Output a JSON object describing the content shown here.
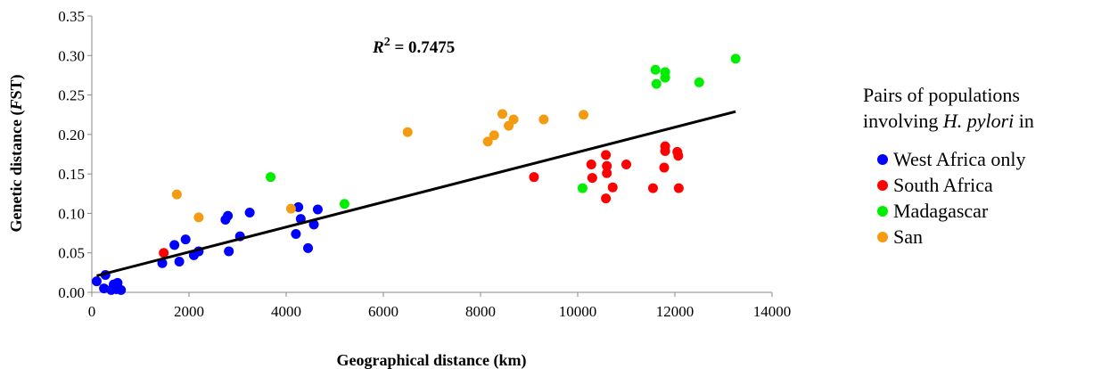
{
  "chart_data": {
    "type": "scatter",
    "annotation": {
      "r_label": "R",
      "r_exp": "2",
      "r_value": " = 0.7475"
    },
    "xlabel": "Geographical distance (km)",
    "ylabel": {
      "prefix": "Genetic distance (",
      "italic": "F",
      "mid": "ST",
      "suffix": ")"
    },
    "xlim": [
      0,
      14000
    ],
    "ylim": [
      0,
      0.35
    ],
    "xticks": [
      "0",
      "2000",
      "4000",
      "6000",
      "8000",
      "10000",
      "12000",
      "14000"
    ],
    "yticks": [
      "0.00",
      "0.05",
      "0.10",
      "0.15",
      "0.20",
      "0.25",
      "0.30",
      "0.35"
    ],
    "grid": false,
    "trendline": {
      "x": [
        100,
        13250
      ],
      "y": [
        0.021,
        0.229
      ]
    },
    "legend": {
      "title_line1": "Pairs of populations",
      "title_line2_prefix": "involving ",
      "title_line2_italic": "H. pylori",
      "title_line2_suffix": " in",
      "position": "right"
    },
    "series": [
      {
        "name": "West Africa only",
        "color": "#0000ff",
        "points": [
          [
            100,
            0.014
          ],
          [
            280,
            0.022
          ],
          [
            250,
            0.005
          ],
          [
            400,
            0.003
          ],
          [
            450,
            0.01
          ],
          [
            500,
            0.004
          ],
          [
            530,
            0.012
          ],
          [
            600,
            0.003
          ],
          [
            1450,
            0.037
          ],
          [
            1700,
            0.06
          ],
          [
            1800,
            0.039
          ],
          [
            1930,
            0.067
          ],
          [
            2100,
            0.047
          ],
          [
            2200,
            0.052
          ],
          [
            2750,
            0.092
          ],
          [
            2800,
            0.097
          ],
          [
            2820,
            0.052
          ],
          [
            3050,
            0.071
          ],
          [
            3250,
            0.101
          ],
          [
            4200,
            0.074
          ],
          [
            4250,
            0.108
          ],
          [
            4300,
            0.093
          ],
          [
            4450,
            0.056
          ],
          [
            4570,
            0.086
          ],
          [
            4650,
            0.105
          ]
        ]
      },
      {
        "name": "South Africa",
        "color": "#ff0000",
        "points": [
          [
            1480,
            0.05
          ],
          [
            9100,
            0.146
          ],
          [
            10280,
            0.162
          ],
          [
            10300,
            0.145
          ],
          [
            10580,
            0.174
          ],
          [
            10600,
            0.16
          ],
          [
            10600,
            0.151
          ],
          [
            10580,
            0.119
          ],
          [
            10720,
            0.133
          ],
          [
            11000,
            0.162
          ],
          [
            11550,
            0.132
          ],
          [
            11800,
            0.185
          ],
          [
            11800,
            0.179
          ],
          [
            11780,
            0.158
          ],
          [
            12050,
            0.178
          ],
          [
            12070,
            0.173
          ],
          [
            12080,
            0.132
          ]
        ]
      },
      {
        "name": "Madagascar",
        "color": "#00ee00",
        "points": [
          [
            3680,
            0.146
          ],
          [
            5200,
            0.112
          ],
          [
            10100,
            0.132
          ],
          [
            11600,
            0.282
          ],
          [
            11620,
            0.264
          ],
          [
            11800,
            0.279
          ],
          [
            11800,
            0.272
          ],
          [
            12500,
            0.266
          ],
          [
            13250,
            0.296
          ]
        ]
      },
      {
        "name": "San",
        "color": "#f39c12",
        "points": [
          [
            1750,
            0.124
          ],
          [
            2200,
            0.095
          ],
          [
            4100,
            0.106
          ],
          [
            6500,
            0.203
          ],
          [
            8150,
            0.191
          ],
          [
            8280,
            0.199
          ],
          [
            8450,
            0.226
          ],
          [
            8580,
            0.211
          ],
          [
            8680,
            0.219
          ],
          [
            9300,
            0.219
          ],
          [
            10120,
            0.225
          ]
        ]
      }
    ]
  }
}
